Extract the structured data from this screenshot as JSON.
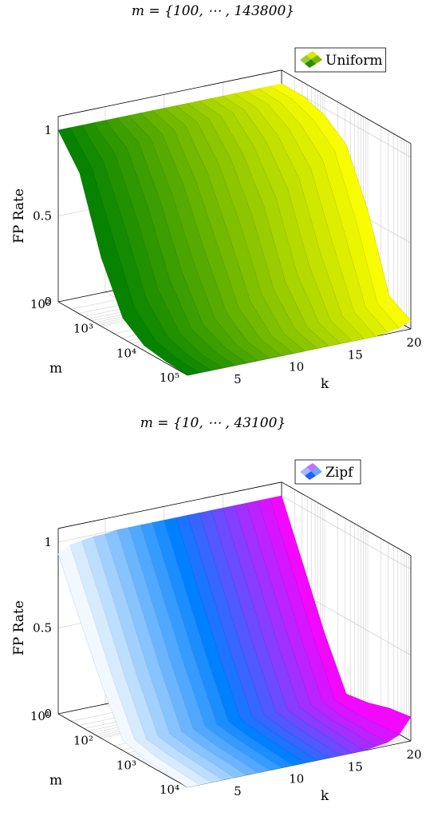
{
  "chart_data": [
    {
      "type": "surface",
      "title": "m = {100, ⋯ , 143800}",
      "legend": "Uniform",
      "legend_position": "top-right",
      "xlabel": "k",
      "ylabel": "m",
      "zlabel": "FP Rate",
      "x_ticks": [
        "5",
        "10",
        "15",
        "20"
      ],
      "y_ticks": [
        "10²",
        "10³",
        "10⁴",
        "10⁵"
      ],
      "z_ticks": [
        "0",
        "0.5",
        "1"
      ],
      "xlim": [
        1,
        20
      ],
      "ylog_lim": [
        2,
        5
      ],
      "zlim": [
        0,
        1
      ],
      "grid": true,
      "colormap": [
        "#008000",
        "#ffff00"
      ],
      "k": [
        1,
        2,
        3,
        4,
        5,
        6,
        7,
        8,
        9,
        10,
        11,
        12,
        13,
        14,
        15,
        16,
        17,
        18,
        19,
        20
      ],
      "m_log10": [
        2.0,
        2.5,
        3.0,
        3.5,
        4.0,
        4.5,
        5.0
      ],
      "fp_rate": [
        [
          1.0,
          1.0,
          1.0,
          1.0,
          1.0,
          1.0,
          1.0,
          1.0,
          1.0,
          1.0,
          1.0,
          1.0,
          1.0,
          1.0,
          1.0,
          1.0,
          1.0,
          1.0,
          1.0,
          1.0
        ],
        [
          0.82,
          0.84,
          0.86,
          0.89,
          0.91,
          0.93,
          0.94,
          0.95,
          0.96,
          0.97,
          0.975,
          0.98,
          0.985,
          0.99,
          0.99,
          0.99,
          0.995,
          0.995,
          1.0,
          1.0
        ],
        [
          0.4,
          0.5,
          0.55,
          0.59,
          0.63,
          0.66,
          0.69,
          0.72,
          0.74,
          0.77,
          0.8,
          0.82,
          0.84,
          0.86,
          0.88,
          0.9,
          0.92,
          0.93,
          0.95,
          0.96
        ],
        [
          0.12,
          0.16,
          0.2,
          0.24,
          0.28,
          0.32,
          0.36,
          0.4,
          0.44,
          0.48,
          0.52,
          0.56,
          0.6,
          0.64,
          0.68,
          0.72,
          0.76,
          0.8,
          0.84,
          0.86
        ],
        [
          0.03,
          0.04,
          0.05,
          0.06,
          0.07,
          0.08,
          0.1,
          0.12,
          0.14,
          0.16,
          0.18,
          0.2,
          0.23,
          0.26,
          0.3,
          0.35,
          0.4,
          0.45,
          0.5,
          0.55
        ],
        [
          0.01,
          0.01,
          0.01,
          0.01,
          0.02,
          0.02,
          0.02,
          0.02,
          0.03,
          0.03,
          0.03,
          0.04,
          0.04,
          0.05,
          0.05,
          0.06,
          0.07,
          0.08,
          0.09,
          0.12
        ],
        [
          0.0,
          0.0,
          0.0,
          0.0,
          0.0,
          0.0,
          0.0,
          0.0,
          0.0,
          0.0,
          0.0,
          0.0,
          0.0,
          0.0,
          0.0,
          0.0,
          0.0,
          0.01,
          0.02,
          0.05
        ]
      ]
    },
    {
      "type": "surface",
      "title": "m = {10, ⋯ , 43100}",
      "legend": "Zipf",
      "legend_position": "top-right",
      "xlabel": "k",
      "ylabel": "m",
      "zlabel": "FP Rate",
      "x_ticks": [
        "5",
        "10",
        "15",
        "20"
      ],
      "y_ticks": [
        "10¹",
        "10²",
        "10³",
        "10⁴"
      ],
      "z_ticks": [
        "0",
        "0.5",
        "1"
      ],
      "xlim": [
        1,
        20
      ],
      "ylog_lim": [
        1,
        4
      ],
      "zlim": [
        0,
        1
      ],
      "grid": true,
      "colormap": [
        "#ffffff",
        "#0080ff",
        "#ff00ff"
      ],
      "k": [
        1,
        2,
        3,
        4,
        5,
        6,
        7,
        8,
        9,
        10,
        11,
        12,
        13,
        14,
        15,
        16,
        17,
        18,
        19,
        20
      ],
      "m_log10": [
        1.0,
        1.5,
        2.0,
        2.5,
        3.0,
        3.5,
        4.0
      ],
      "fp_rate": [
        [
          0.93,
          0.97,
          0.98,
          0.99,
          0.99,
          1.0,
          1.0,
          1.0,
          1.0,
          1.0,
          1.0,
          1.0,
          1.0,
          1.0,
          1.0,
          1.0,
          1.0,
          1.0,
          1.0,
          1.0
        ],
        [
          0.62,
          0.65,
          0.66,
          0.66,
          0.67,
          0.67,
          0.67,
          0.67,
          0.67,
          0.67,
          0.67,
          0.67,
          0.67,
          0.67,
          0.67,
          0.67,
          0.67,
          0.67,
          0.67,
          0.67
        ],
        [
          0.32,
          0.33,
          0.33,
          0.33,
          0.34,
          0.34,
          0.34,
          0.34,
          0.34,
          0.34,
          0.34,
          0.34,
          0.34,
          0.34,
          0.34,
          0.34,
          0.34,
          0.34,
          0.34,
          0.34
        ],
        [
          0.06,
          0.05,
          0.04,
          0.04,
          0.04,
          0.04,
          0.04,
          0.04,
          0.04,
          0.04,
          0.04,
          0.04,
          0.04,
          0.04,
          0.04,
          0.04,
          0.04,
          0.04,
          0.04,
          0.06
        ],
        [
          0.02,
          0.02,
          0.02,
          0.02,
          0.02,
          0.02,
          0.02,
          0.02,
          0.02,
          0.02,
          0.02,
          0.02,
          0.02,
          0.02,
          0.02,
          0.02,
          0.02,
          0.02,
          0.03,
          0.08
        ],
        [
          0.01,
          0.01,
          0.01,
          0.01,
          0.01,
          0.01,
          0.01,
          0.01,
          0.01,
          0.01,
          0.01,
          0.01,
          0.01,
          0.01,
          0.01,
          0.01,
          0.02,
          0.02,
          0.04,
          0.12
        ],
        [
          0.0,
          0.0,
          0.0,
          0.0,
          0.0,
          0.0,
          0.0,
          0.0,
          0.0,
          0.0,
          0.0,
          0.0,
          0.0,
          0.0,
          0.0,
          0.0,
          0.01,
          0.02,
          0.05,
          0.14
        ]
      ]
    }
  ]
}
